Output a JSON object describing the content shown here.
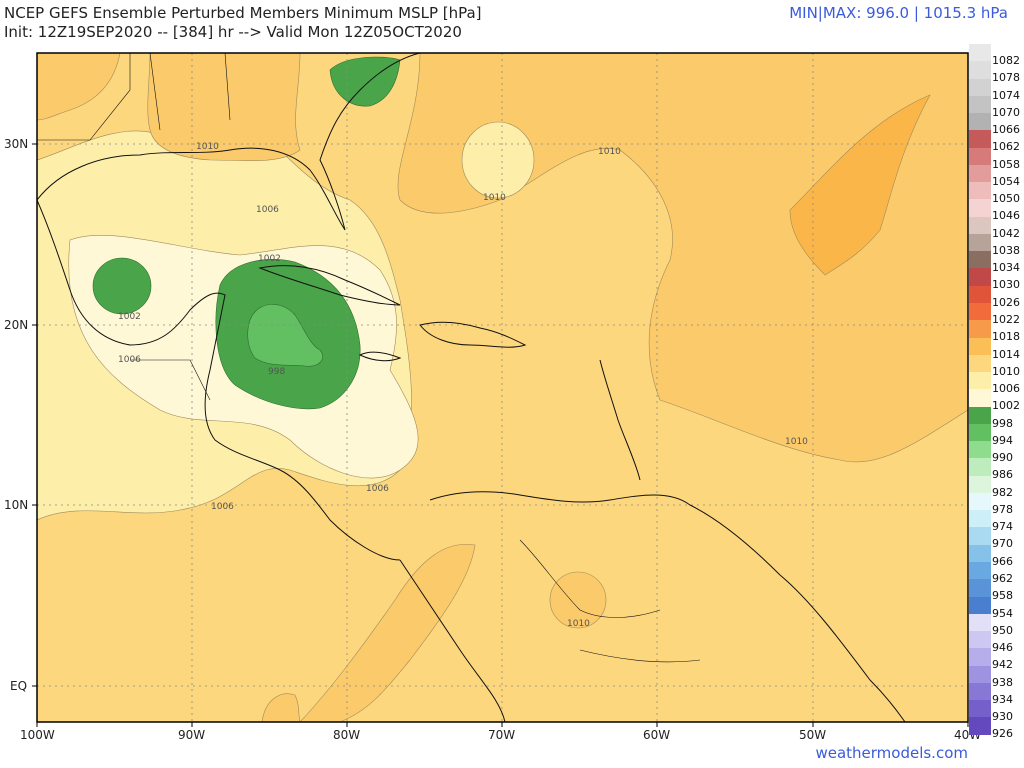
{
  "header": {
    "title_line1": "NCEP GEFS Ensemble Perturbed Members Minimum MSLP [hPa]",
    "title_line2": "Init: 12Z19SEP2020 -- [384] hr --> Valid Mon 12Z05OCT2020",
    "minmax": "MIN|MAX: 996.0 | 1015.3 hPa"
  },
  "footer": {
    "credit": "weathermodels.com"
  },
  "axes": {
    "lat_labels": [
      "30N",
      "20N",
      "10N",
      "EQ"
    ],
    "lon_labels": [
      "100W",
      "90W",
      "80W",
      "70W",
      "60W",
      "50W",
      "40W"
    ]
  },
  "contour_labels": [
    "1010",
    "1006",
    "1002",
    "1002",
    "998",
    "1006",
    "1006",
    "1006",
    "1010",
    "1010",
    "1010",
    "1010"
  ],
  "legend": {
    "levels": [
      {
        "label": "1082",
        "color": "#e8e8e8"
      },
      {
        "label": "1078",
        "color": "#dedede"
      },
      {
        "label": "1074",
        "color": "#d2d2d2"
      },
      {
        "label": "1070",
        "color": "#c3c3c3"
      },
      {
        "label": "1066",
        "color": "#b2b2b2"
      },
      {
        "label": "1062",
        "color": "#c55a5a"
      },
      {
        "label": "1058",
        "color": "#d77a7a"
      },
      {
        "label": "1054",
        "color": "#e39c9c"
      },
      {
        "label": "1050",
        "color": "#efbcbc"
      },
      {
        "label": "1046",
        "color": "#f5d3d3"
      },
      {
        "label": "1042",
        "color": "#dcc6c0"
      },
      {
        "label": "1038",
        "color": "#b8a39a"
      },
      {
        "label": "1034",
        "color": "#8b6e62"
      },
      {
        "label": "1030",
        "color": "#c04848"
      },
      {
        "label": "1026",
        "color": "#e0553a"
      },
      {
        "label": "1022",
        "color": "#f26b3a"
      },
      {
        "label": "1018",
        "color": "#f79a4a"
      },
      {
        "label": "1014",
        "color": "#fbbf58"
      },
      {
        "label": "1010",
        "color": "#fdd77e"
      },
      {
        "label": "1006",
        "color": "#fdeeaa"
      },
      {
        "label": "1002",
        "color": "#fff8d6"
      },
      {
        "label": "998",
        "color": "#4aa54a"
      },
      {
        "label": "994",
        "color": "#62bf62"
      },
      {
        "label": "990",
        "color": "#8fdc8f"
      },
      {
        "label": "986",
        "color": "#bdecbd"
      },
      {
        "label": "982",
        "color": "#ddf5dd"
      },
      {
        "label": "978",
        "color": "#e6f8fb"
      },
      {
        "label": "974",
        "color": "#cdeff7"
      },
      {
        "label": "970",
        "color": "#a9daf1"
      },
      {
        "label": "966",
        "color": "#86c1ea"
      },
      {
        "label": "962",
        "color": "#6aa8e2"
      },
      {
        "label": "958",
        "color": "#5a93d8"
      },
      {
        "label": "954",
        "color": "#4a7fcf"
      },
      {
        "label": "950",
        "color": "#e2e0f6"
      },
      {
        "label": "946",
        "color": "#cdc8f1"
      },
      {
        "label": "942",
        "color": "#b6aeea"
      },
      {
        "label": "938",
        "color": "#9e93e1"
      },
      {
        "label": "934",
        "color": "#8878d6"
      },
      {
        "label": "930",
        "color": "#745fcb"
      },
      {
        "label": "926",
        "color": "#6448be"
      }
    ]
  }
}
